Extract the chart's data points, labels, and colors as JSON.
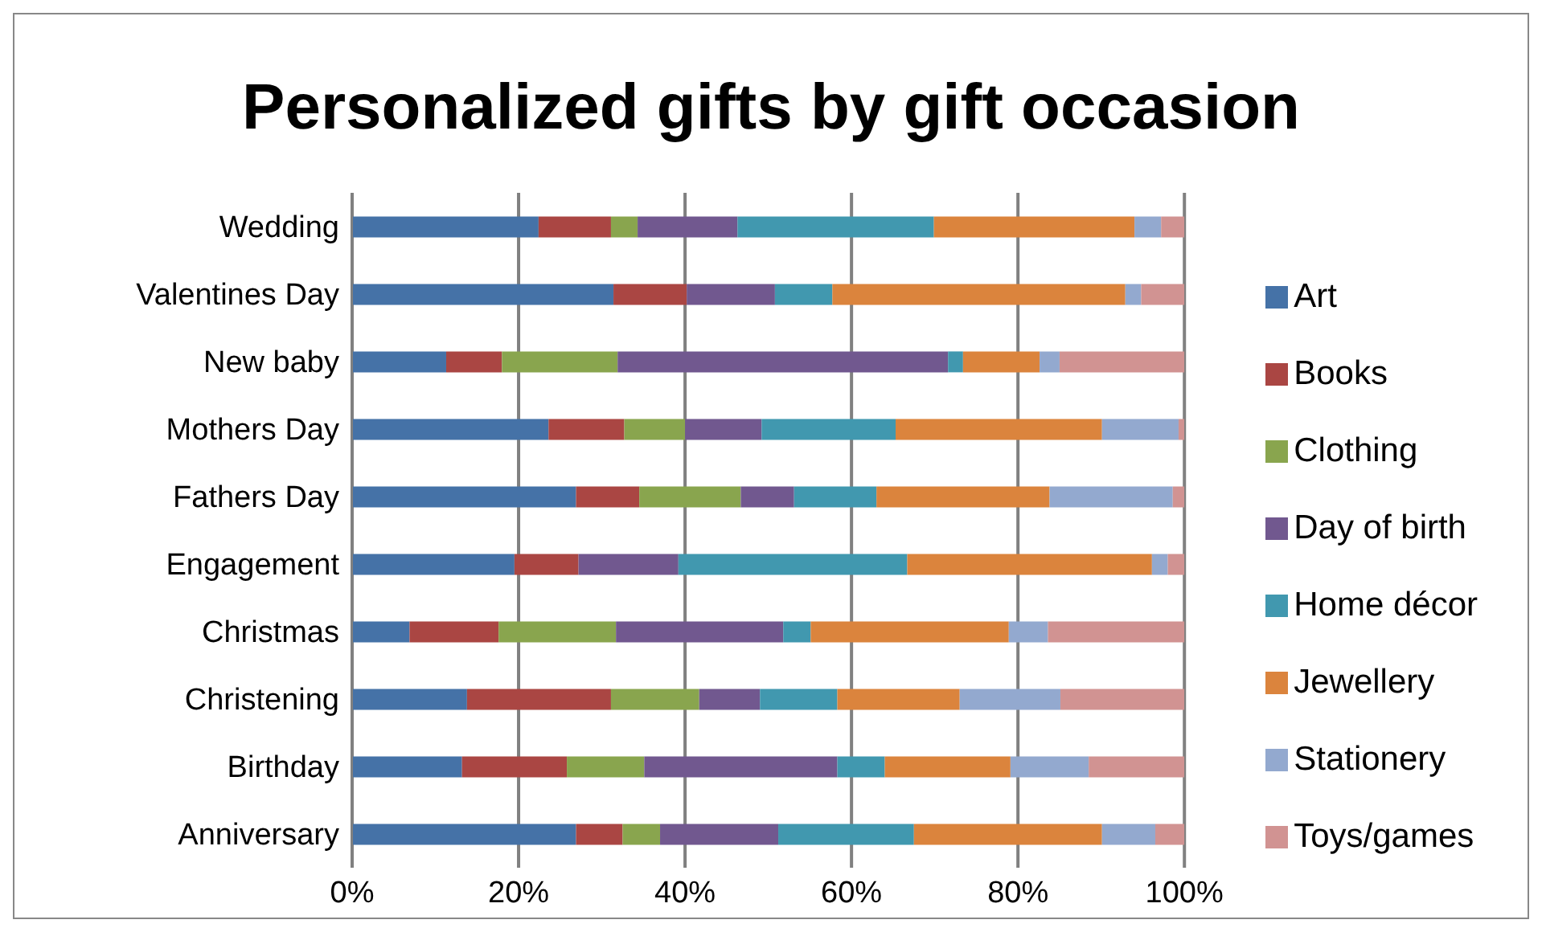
{
  "chart_data": {
    "type": "bar",
    "orientation": "horizontal",
    "stacked": true,
    "title": "Personalized gifts by gift occasion",
    "categories": [
      "Wedding",
      "Valentines Day",
      "New baby",
      "Mothers Day",
      "Fathers Day",
      "Engagement",
      "Christmas",
      "Christening",
      "Birthday",
      "Anniversary"
    ],
    "series": [
      {
        "name": "Art",
        "color": "#4572a7",
        "values": [
          22.4,
          31.4,
          11.3,
          23.6,
          26.9,
          19.5,
          6.9,
          13.8,
          13.2,
          26.9
        ]
      },
      {
        "name": "Books",
        "color": "#aa4643",
        "values": [
          8.7,
          8.8,
          6.7,
          9.1,
          7.6,
          7.7,
          10.7,
          17.3,
          12.6,
          5.6
        ]
      },
      {
        "name": "Clothing",
        "color": "#89a54e",
        "values": [
          3.2,
          0,
          13.9,
          7.3,
          12.2,
          0,
          14.1,
          10.6,
          9.3,
          4.5
        ]
      },
      {
        "name": "Day of birth",
        "color": "#71588f",
        "values": [
          12.0,
          10.6,
          39.7,
          9.2,
          6.4,
          12.0,
          20.1,
          7.3,
          23.2,
          14.2
        ]
      },
      {
        "name": "Home décor",
        "color": "#4198af",
        "values": [
          23.6,
          6.9,
          1.8,
          16.1,
          9.9,
          27.5,
          3.3,
          9.3,
          5.7,
          16.3
        ]
      },
      {
        "name": "Jewellery",
        "color": "#db843d",
        "values": [
          24.1,
          35.2,
          9.2,
          24.8,
          20.8,
          29.4,
          23.8,
          14.7,
          15.1,
          22.6
        ]
      },
      {
        "name": "Stationery",
        "color": "#93a9cf",
        "values": [
          3.2,
          1.9,
          2.4,
          9.2,
          14.8,
          1.9,
          4.7,
          12.1,
          9.4,
          6.4
        ]
      },
      {
        "name": "Toys/games",
        "color": "#d19392",
        "values": [
          2.8,
          5.2,
          15.0,
          0.7,
          1.4,
          2.0,
          16.4,
          14.9,
          11.5,
          3.5
        ]
      }
    ],
    "xlim": [
      0,
      100
    ],
    "xticks": [
      {
        "value": 0,
        "label": "0%"
      },
      {
        "value": 20,
        "label": "20%"
      },
      {
        "value": 40,
        "label": "40%"
      },
      {
        "value": 60,
        "label": "60%"
      },
      {
        "value": 80,
        "label": "80%"
      },
      {
        "value": 100,
        "label": "100%"
      }
    ],
    "grid": "x",
    "legend": "right"
  }
}
